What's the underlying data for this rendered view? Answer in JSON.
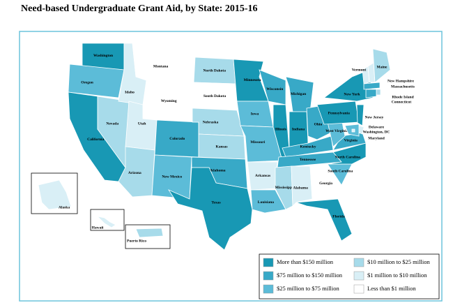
{
  "title": "Need-based Undergraduate Grant Aid, by State:  2015-16",
  "legend": [
    {
      "label": "More than $150 million",
      "color": "#1898b4"
    },
    {
      "label": "$75 million to $150 million",
      "color": "#38a9c7"
    },
    {
      "label": "$25 million to $75 million",
      "color": "#5cbcd8"
    },
    {
      "label": "$10 million to $25 million",
      "color": "#a7dbea"
    },
    {
      "label": "$1 million to $10 million",
      "color": "#d9eff6"
    },
    {
      "label": "Less than $1 million",
      "color": "#ffffff"
    }
  ],
  "states": [
    {
      "name": "Washington",
      "level": 0
    },
    {
      "name": "Oregon",
      "level": 2
    },
    {
      "name": "California",
      "level": 0
    },
    {
      "name": "Nevada",
      "level": 3
    },
    {
      "name": "Idaho",
      "level": 4
    },
    {
      "name": "Montana",
      "level": 5
    },
    {
      "name": "Wyoming",
      "level": 5
    },
    {
      "name": "Utah",
      "level": 4
    },
    {
      "name": "Arizona",
      "level": 3
    },
    {
      "name": "Colorado",
      "level": 1
    },
    {
      "name": "New Mexico",
      "level": 2
    },
    {
      "name": "North Dakota",
      "level": 3
    },
    {
      "name": "South Dakota",
      "level": 5
    },
    {
      "name": "Nebraska",
      "level": 3
    },
    {
      "name": "Kansas",
      "level": 3
    },
    {
      "name": "Oklahoma",
      "level": 1
    },
    {
      "name": "Texas",
      "level": 0
    },
    {
      "name": "Minnesota",
      "level": 0
    },
    {
      "name": "Iowa",
      "level": 2
    },
    {
      "name": "Missouri",
      "level": 2
    },
    {
      "name": "Arkansas",
      "level": 4
    },
    {
      "name": "Louisiana",
      "level": 2
    },
    {
      "name": "Wisconsin",
      "level": 1
    },
    {
      "name": "Illinois",
      "level": 0
    },
    {
      "name": "Michigan",
      "level": 1
    },
    {
      "name": "Indiana",
      "level": 0
    },
    {
      "name": "Ohio",
      "level": 1
    },
    {
      "name": "Kentucky",
      "level": 1
    },
    {
      "name": "Tennessee",
      "level": 1
    },
    {
      "name": "Mississippi",
      "level": 3
    },
    {
      "name": "Alabama",
      "level": 4
    },
    {
      "name": "Georgia",
      "level": 5
    },
    {
      "name": "Florida",
      "level": 0
    },
    {
      "name": "South Carolina",
      "level": 2
    },
    {
      "name": "North Carolina",
      "level": 0
    },
    {
      "name": "Virginia",
      "level": 1
    },
    {
      "name": "West Virginia",
      "level": 2
    },
    {
      "name": "Pennsylvania",
      "level": 0
    },
    {
      "name": "New York",
      "level": 0
    },
    {
      "name": "Vermont",
      "level": 4
    },
    {
      "name": "New Hampshire",
      "level": 4
    },
    {
      "name": "Maine",
      "level": 3
    },
    {
      "name": "Massachusetts",
      "level": 1
    },
    {
      "name": "Rhode Island",
      "level": 3
    },
    {
      "name": "Connecticut",
      "level": 1
    },
    {
      "name": "New Jersey",
      "level": 0
    },
    {
      "name": "Delaware",
      "level": 4
    },
    {
      "name": "Maryland",
      "level": 2
    },
    {
      "name": "Washington, DC",
      "level": 4
    },
    {
      "name": "Alaska",
      "level": 4
    },
    {
      "name": "Hawaii",
      "level": 4
    },
    {
      "name": "Puerto Rico",
      "level": 3
    }
  ]
}
